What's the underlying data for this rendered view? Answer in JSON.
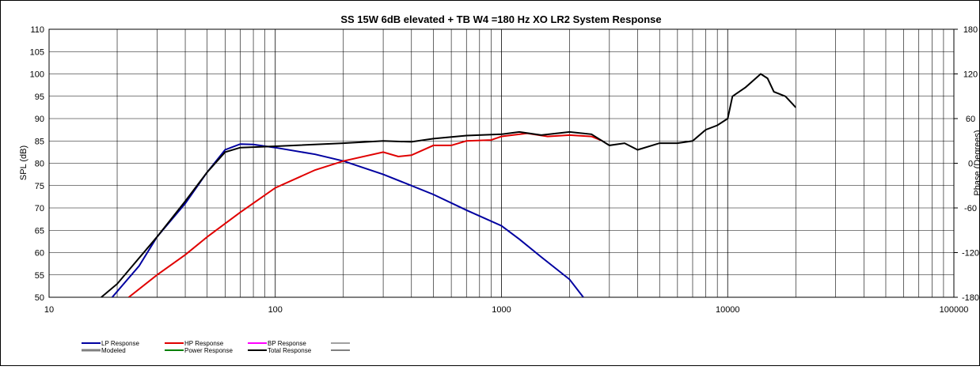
{
  "chart_data": {
    "type": "line",
    "title": "SS 15W 6dB elevated  + TB W4 =180 Hz XO LR2    System Response",
    "ylabel": "SPL (dB)",
    "y2label": "Phase (Degrees)",
    "xscale": "log",
    "grid": true,
    "xlim": [
      10,
      100000
    ],
    "xticks": [
      10,
      100,
      1000,
      10000,
      100000
    ],
    "xminorticks": [
      20,
      30,
      40,
      50,
      60,
      70,
      80,
      90,
      200,
      300,
      400,
      500,
      600,
      700,
      800,
      900,
      2000,
      3000,
      4000,
      5000,
      6000,
      7000,
      8000,
      9000,
      20000,
      30000,
      40000,
      50000,
      60000,
      70000,
      80000,
      90000
    ],
    "ylim": [
      50,
      110
    ],
    "yticks": [
      50,
      55,
      60,
      65,
      70,
      75,
      80,
      85,
      90,
      95,
      100,
      105,
      110
    ],
    "y2lim": [
      -180,
      180
    ],
    "y2ticks": [
      -180,
      -120,
      -60,
      0,
      60,
      120,
      180
    ],
    "series": [
      {
        "name": "LP Response",
        "color": "#0000a0",
        "x": [
          19,
          25,
          30,
          40,
          50,
          60,
          70,
          80,
          100,
          150,
          200,
          300,
          400,
          500,
          700,
          1000,
          1200,
          1500,
          2000,
          2300
        ],
        "values": [
          50,
          57,
          63.5,
          71,
          78,
          83,
          84.3,
          84.2,
          83.5,
          82,
          80.5,
          77.5,
          75,
          73,
          69.5,
          66,
          63,
          59,
          54,
          50
        ]
      },
      {
        "name": "HP Response",
        "color": "#e00000",
        "x": [
          22.5,
          30,
          40,
          50,
          70,
          100,
          150,
          200,
          300,
          350,
          400,
          500,
          600,
          700,
          900,
          1000,
          1300,
          1600,
          2000,
          2500,
          2800
        ],
        "values": [
          50,
          55,
          59.5,
          63.5,
          69,
          74.5,
          78.5,
          80.5,
          82.5,
          81.5,
          81.8,
          84,
          84,
          85,
          85.2,
          86,
          86.7,
          86,
          86.3,
          86,
          85
        ]
      },
      {
        "name": "BP Response",
        "color": "#ff00ff"
      },
      {
        "name": "Modeled",
        "color": "#808080"
      },
      {
        "name": "Power Response",
        "color": "#008000"
      },
      {
        "name": "Total Response",
        "color": "#000000",
        "x": [
          17,
          20,
          30,
          40,
          50,
          60,
          70,
          100,
          200,
          300,
          400,
          500,
          700,
          1000,
          1200,
          1500,
          2000,
          2500,
          3000,
          3500,
          4000,
          5000,
          6000,
          7000,
          8000,
          9000,
          10000,
          10500,
          12000,
          14000,
          15000,
          16000,
          18000,
          20000
        ],
        "values": [
          50,
          53,
          63.5,
          71.5,
          78,
          82.5,
          83.5,
          83.8,
          84.5,
          85,
          84.8,
          85.5,
          86.2,
          86.5,
          87,
          86.3,
          87,
          86.5,
          84,
          84.5,
          83,
          84.5,
          84.5,
          85,
          87.5,
          88.5,
          90,
          95,
          97,
          100,
          99,
          96,
          95,
          92.5
        ]
      }
    ]
  }
}
